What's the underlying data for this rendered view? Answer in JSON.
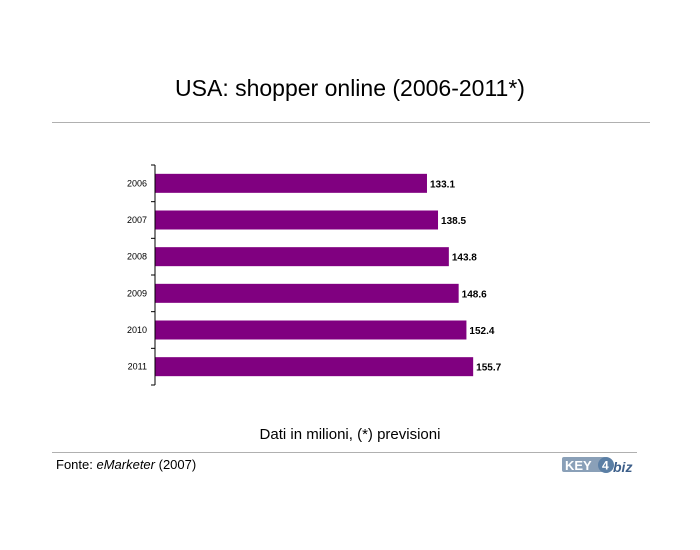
{
  "header": {
    "title": "USA: shopper online (2006-2011*)"
  },
  "chart_data": {
    "type": "bar",
    "orientation": "horizontal",
    "categories": [
      "2006",
      "2007",
      "2008",
      "2009",
      "2010",
      "2011"
    ],
    "values": [
      133.1,
      138.5,
      143.8,
      148.6,
      152.4,
      155.7
    ],
    "data_labels": [
      "133.1",
      "138.5",
      "143.8",
      "148.6",
      "152.4",
      "155.7"
    ],
    "xlim": [
      0,
      230
    ],
    "grid": false,
    "legend": "none",
    "colors": {
      "bar": "#800080",
      "axis": "#000000"
    }
  },
  "footer": {
    "note": "Dati in milioni, (*) previsioni",
    "source_prefix": "Fonte: ",
    "source_name": "eMarketer",
    "source_suffix": " (2007)"
  },
  "logo": {
    "icon": "key4biz-logo",
    "text": "KEY4biz"
  }
}
